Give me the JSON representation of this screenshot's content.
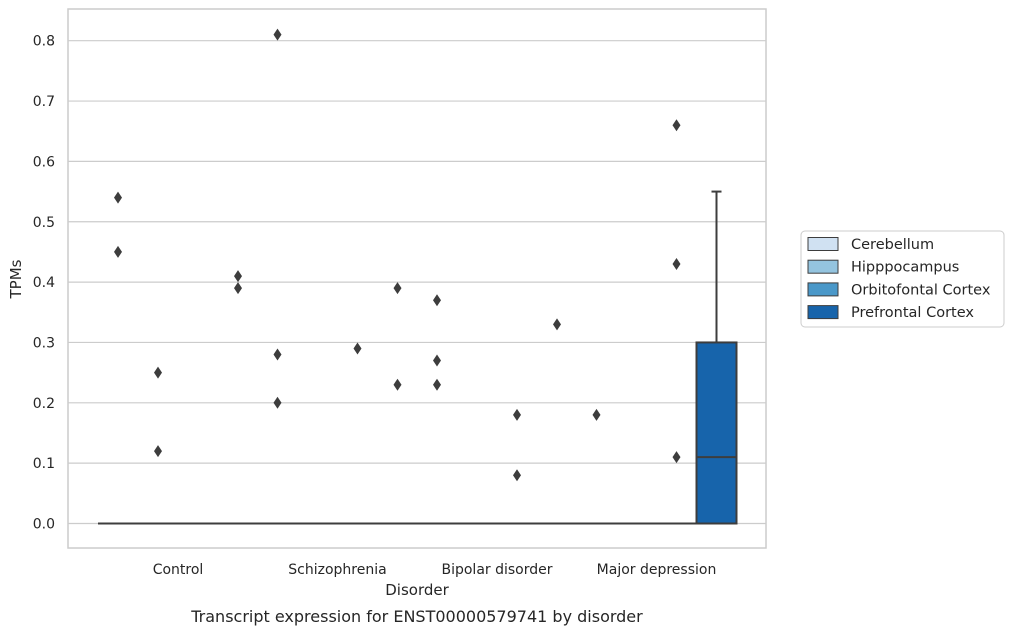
{
  "chart_data": {
    "type": "box",
    "title": "",
    "caption": "Transcript expression for ENST00000579741 by disorder",
    "xlabel": "Disorder",
    "ylabel": "TPMs",
    "ylim": [
      -0.04,
      0.855
    ],
    "yticks": [
      0.0,
      0.1,
      0.2,
      0.3,
      0.4,
      0.5,
      0.6,
      0.7,
      0.8
    ],
    "ytick_labels": [
      "0.0",
      "0.1",
      "0.2",
      "0.3",
      "0.4",
      "0.5",
      "0.6",
      "0.7",
      "0.8"
    ],
    "grid": true,
    "legend_position": "right-center, outside plot",
    "categories": [
      "Control",
      "Schizophrenia",
      "Bipolar disorder",
      "Major depression"
    ],
    "series": [
      {
        "name": "Cerebellum",
        "color": "#d0e1f2",
        "boxes": [
          {
            "category": "Control",
            "q1": 0,
            "median": 0,
            "q3": 0,
            "whisker_low": 0,
            "whisker_high": 0,
            "outliers": [
              0.54,
              0.45
            ]
          },
          {
            "category": "Schizophrenia",
            "q1": 0,
            "median": 0,
            "q3": 0,
            "whisker_low": 0,
            "whisker_high": 0,
            "outliers": [
              0.81,
              0.28,
              0.2
            ]
          },
          {
            "category": "Bipolar disorder",
            "q1": 0,
            "median": 0,
            "q3": 0,
            "whisker_low": 0,
            "whisker_high": 0,
            "outliers": [
              0.37,
              0.27,
              0.23
            ]
          },
          {
            "category": "Major depression",
            "q1": 0,
            "median": 0,
            "q3": 0,
            "whisker_low": 0,
            "whisker_high": 0,
            "outliers": [
              0.18
            ]
          }
        ]
      },
      {
        "name": "Hipppocampus",
        "color": "#94c4df",
        "boxes": [
          {
            "category": "Control",
            "q1": 0,
            "median": 0,
            "q3": 0,
            "whisker_low": 0,
            "whisker_high": 0,
            "outliers": [
              0.25,
              0.12
            ]
          },
          {
            "category": "Schizophrenia",
            "q1": 0,
            "median": 0,
            "q3": 0,
            "whisker_low": 0,
            "whisker_high": 0,
            "outliers": []
          },
          {
            "category": "Bipolar disorder",
            "q1": 0,
            "median": 0,
            "q3": 0,
            "whisker_low": 0,
            "whisker_high": 0,
            "outliers": []
          },
          {
            "category": "Major depression",
            "q1": 0,
            "median": 0,
            "q3": 0,
            "whisker_low": 0,
            "whisker_high": 0,
            "outliers": []
          }
        ]
      },
      {
        "name": "Orbitofontal Cortex",
        "color": "#4a98c9",
        "boxes": [
          {
            "category": "Control",
            "q1": 0,
            "median": 0,
            "q3": 0,
            "whisker_low": 0,
            "whisker_high": 0,
            "outliers": []
          },
          {
            "category": "Schizophrenia",
            "q1": 0,
            "median": 0,
            "q3": 0,
            "whisker_low": 0,
            "whisker_high": 0,
            "outliers": [
              0.29
            ]
          },
          {
            "category": "Bipolar disorder",
            "q1": 0,
            "median": 0,
            "q3": 0,
            "whisker_low": 0,
            "whisker_high": 0,
            "outliers": [
              0.18,
              0.08
            ]
          },
          {
            "category": "Major depression",
            "q1": 0,
            "median": 0,
            "q3": 0,
            "whisker_low": 0,
            "whisker_high": 0,
            "outliers": [
              0.66,
              0.43,
              0.11
            ]
          }
        ]
      },
      {
        "name": "Prefrontal Cortex",
        "color": "#1764ab",
        "boxes": [
          {
            "category": "Control",
            "q1": 0,
            "median": 0,
            "q3": 0,
            "whisker_low": 0,
            "whisker_high": 0,
            "outliers": [
              0.41,
              0.39
            ]
          },
          {
            "category": "Schizophrenia",
            "q1": 0,
            "median": 0,
            "q3": 0,
            "whisker_low": 0,
            "whisker_high": 0,
            "outliers": [
              0.39,
              0.23
            ]
          },
          {
            "category": "Bipolar disorder",
            "q1": 0,
            "median": 0,
            "q3": 0,
            "whisker_low": 0,
            "whisker_high": 0,
            "outliers": [
              0.33
            ]
          },
          {
            "category": "Major depression",
            "q1": 0,
            "median": 0.11,
            "q3": 0.3,
            "whisker_low": 0,
            "whisker_high": 0.55,
            "outliers": []
          }
        ]
      }
    ]
  },
  "colors": {
    "grid": "#cccccc",
    "frame": "#cccccc",
    "box_edge": "#3d3d3d",
    "text": "#262626"
  }
}
